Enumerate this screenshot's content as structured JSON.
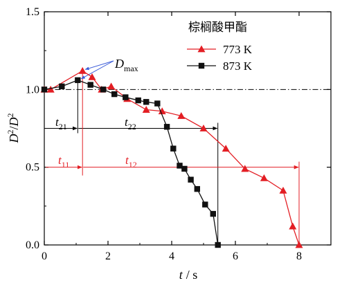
{
  "chart_data": {
    "type": "line",
    "xlabel_var": "t",
    "xlabel_unit": "/ s",
    "ylabel_num_base": "D",
    "ylabel_num_sup": "2",
    "ylabel_sep": "/",
    "ylabel_den_base": "D",
    "ylabel_den_sup": "2",
    "xlim": [
      0,
      9
    ],
    "ylim": [
      0,
      1.5
    ],
    "xticks": [
      0,
      2,
      4,
      6,
      8
    ],
    "xtick_labels": [
      "0",
      "2",
      "4",
      "6",
      "8"
    ],
    "yticks": [
      0.0,
      0.5,
      1.0,
      1.5
    ],
    "ytick_labels": [
      "0.0",
      "0.5",
      "1.0",
      "1.5"
    ],
    "legend_title": "棕榈酸甲酯",
    "legend_position": "top-right",
    "series": [
      {
        "name": "773 K",
        "color": "#e31e24",
        "marker": "triangle",
        "x": [
          0,
          0.2,
          1.2,
          1.5,
          1.8,
          2.1,
          2.6,
          3.2,
          3.7,
          4.3,
          5.0,
          5.7,
          6.3,
          6.9,
          7.5,
          7.8,
          8.0
        ],
        "y": [
          1.0,
          1.0,
          1.12,
          1.08,
          1.0,
          1.02,
          0.94,
          0.87,
          0.86,
          0.83,
          0.75,
          0.62,
          0.49,
          0.43,
          0.35,
          0.12,
          0.0
        ]
      },
      {
        "name": "873 K",
        "color": "#111111",
        "marker": "square",
        "x": [
          0,
          0.55,
          1.05,
          1.45,
          1.85,
          2.2,
          2.55,
          2.95,
          3.2,
          3.55,
          3.85,
          4.05,
          4.25,
          4.4,
          4.6,
          4.8,
          5.05,
          5.3,
          5.45
        ],
        "y": [
          1.0,
          1.02,
          1.06,
          1.03,
          1.0,
          0.97,
          0.95,
          0.93,
          0.92,
          0.91,
          0.76,
          0.62,
          0.51,
          0.49,
          0.42,
          0.36,
          0.26,
          0.2,
          0.0
        ]
      }
    ],
    "reference_line_y": 1.0,
    "annotations": {
      "dmax_base": "D",
      "dmax_sub": "max",
      "t21_base": "t",
      "t21_sub": "21",
      "t22_base": "t",
      "t22_sub": "22",
      "t11_base": "t",
      "t11_sub": "11",
      "t12_base": "t",
      "t12_sub": "12",
      "t21_row_y": 0.75,
      "t11_row_y": 0.5,
      "t2_split_x": 1.05,
      "t2_end_x": 5.45,
      "t1_split_x": 1.2,
      "t1_end_x": 8.0
    }
  }
}
